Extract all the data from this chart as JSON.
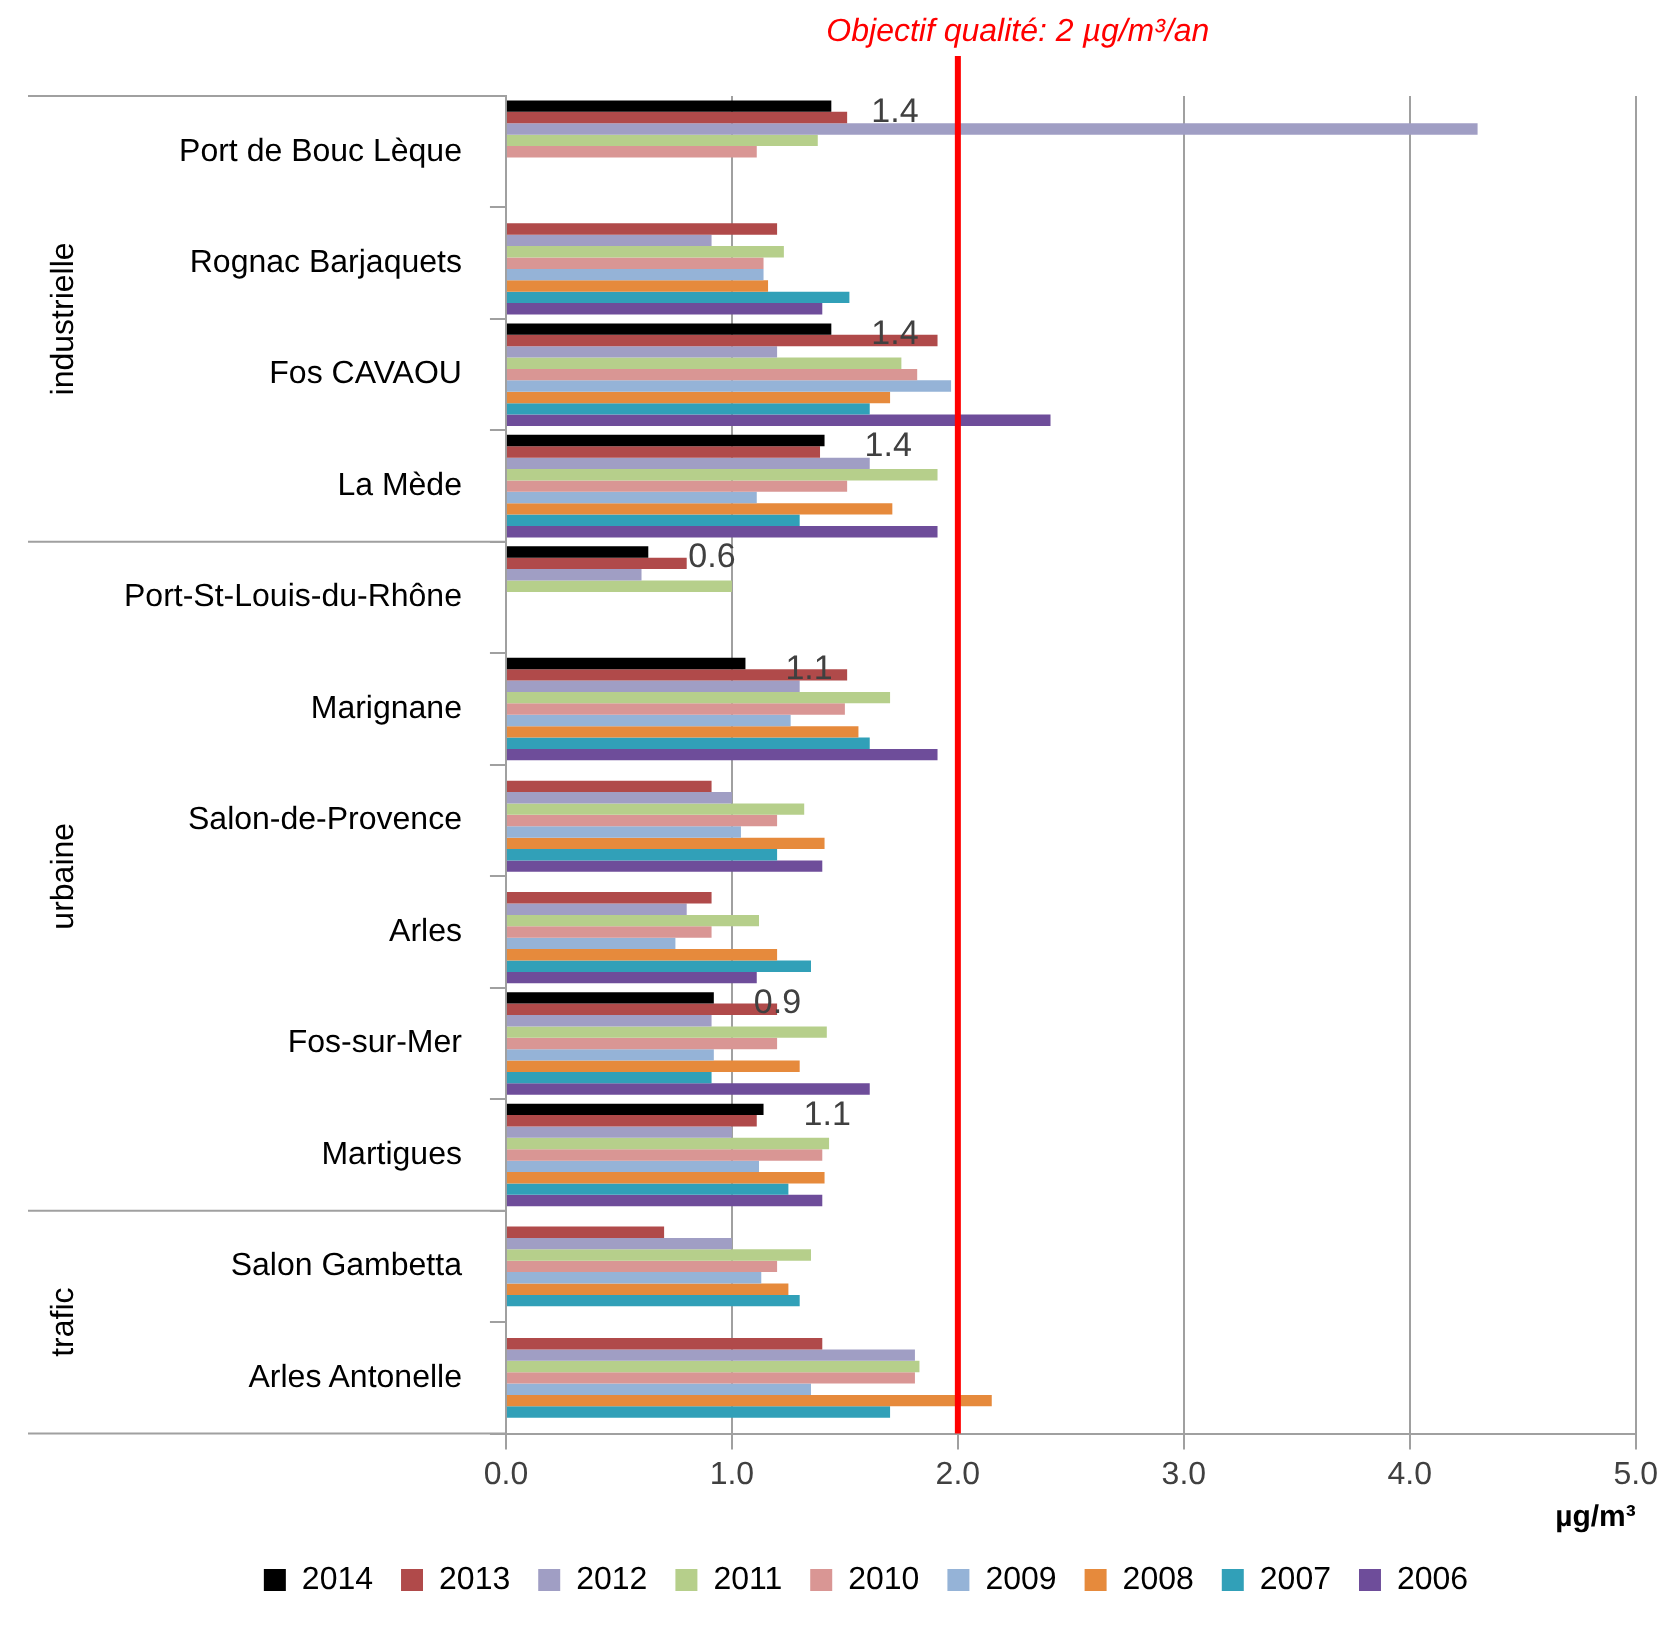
{
  "chart_data": {
    "type": "bar",
    "orientation": "horizontal",
    "xlabel": "µg/m³",
    "categories": [
      "Port de Bouc Lèque",
      "Rognac Barjaquets",
      "Fos CAVAOU",
      "La Mède",
      "Port-St-Louis-du-Rhône",
      "Marignane",
      "Salon-de-Provence",
      "Arles",
      "Fos-sur-Mer",
      "Martigues",
      "Salon Gambetta",
      "Arles Antonelle"
    ],
    "series": [
      {
        "name": "2014",
        "color": "#000000",
        "values": [
          1.44,
          null,
          1.44,
          1.41,
          0.63,
          1.06,
          null,
          null,
          0.92,
          1.14,
          null,
          null
        ],
        "value_labels": [
          "1.4",
          null,
          "1.4",
          "1.4",
          "0.6",
          "1.1",
          null,
          null,
          "0.9",
          "1.1",
          null,
          null
        ]
      },
      {
        "name": "2013",
        "color": "#b04a4a",
        "values": [
          1.51,
          1.2,
          1.91,
          1.39,
          0.8,
          1.51,
          0.91,
          0.91,
          1.2,
          1.11,
          0.7,
          1.4
        ]
      },
      {
        "name": "2012",
        "color": "#a09ec4",
        "values": [
          4.3,
          0.91,
          1.2,
          1.61,
          0.6,
          1.3,
          1.0,
          0.8,
          0.91,
          1.0,
          1.0,
          1.81
        ]
      },
      {
        "name": "2011",
        "color": "#b6cf8b",
        "values": [
          1.38,
          1.23,
          1.75,
          1.91,
          1.0,
          1.7,
          1.32,
          1.12,
          1.42,
          1.43,
          1.35,
          1.83
        ]
      },
      {
        "name": "2010",
        "color": "#d99694",
        "values": [
          1.11,
          1.14,
          1.82,
          1.51,
          null,
          1.5,
          1.2,
          0.91,
          1.2,
          1.4,
          1.2,
          1.81
        ]
      },
      {
        "name": "2009",
        "color": "#95b3d7",
        "values": [
          null,
          1.14,
          1.97,
          1.11,
          null,
          1.26,
          1.04,
          0.75,
          0.92,
          1.12,
          1.13,
          1.35
        ]
      },
      {
        "name": "2008",
        "color": "#e68a3c",
        "values": [
          null,
          1.16,
          1.7,
          1.71,
          null,
          1.56,
          1.41,
          1.2,
          1.3,
          1.41,
          1.25,
          2.15
        ]
      },
      {
        "name": "2007",
        "color": "#31a0b8",
        "values": [
          null,
          1.52,
          1.61,
          1.3,
          null,
          1.61,
          1.2,
          1.35,
          0.91,
          1.25,
          1.3,
          1.7
        ]
      },
      {
        "name": "2006",
        "color": "#6e4d9a",
        "values": [
          null,
          1.4,
          2.41,
          1.91,
          null,
          1.91,
          1.4,
          1.11,
          1.61,
          1.4,
          null,
          null
        ]
      }
    ],
    "xlim": [
      0,
      5
    ],
    "xticks": [
      {
        "value": 0,
        "label": "0.0"
      },
      {
        "value": 1,
        "label": "1.0"
      },
      {
        "value": 2,
        "label": "2.0"
      },
      {
        "value": 3,
        "label": "3.0"
      },
      {
        "value": 4,
        "label": "4.0"
      },
      {
        "value": 5,
        "label": "5.0"
      }
    ],
    "ref_lines": [
      {
        "axis": "x",
        "value": 2,
        "label": "Objectif qualité: 2 µg/m³/an",
        "color": "#ff0000"
      }
    ],
    "annotations": [
      "industrielle",
      "urbaine",
      "trafic"
    ],
    "grid": "x",
    "legend": "bottom"
  }
}
